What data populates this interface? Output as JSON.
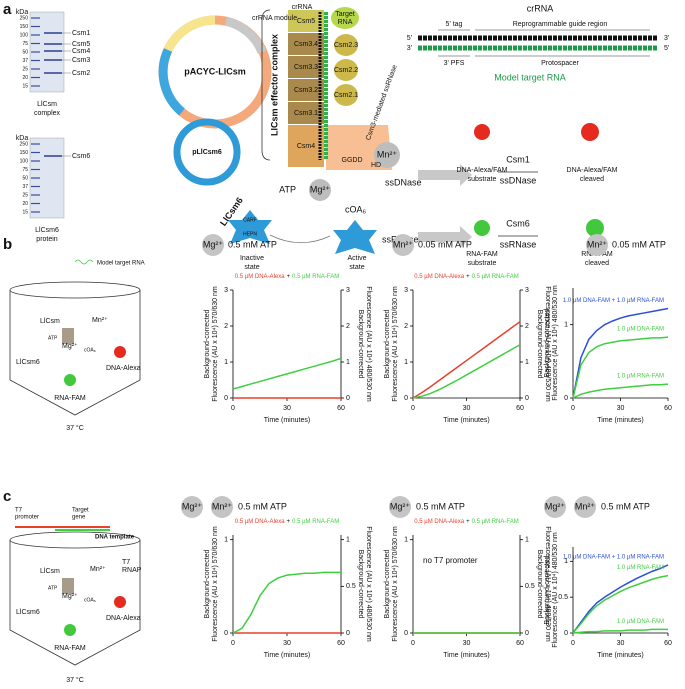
{
  "panels": {
    "a": {
      "label": "a",
      "gel_unit": "kDa",
      "gel_markers": [
        "250",
        "150",
        "100",
        "75",
        "50",
        "37",
        "25",
        "20",
        "15"
      ],
      "gel1_bands": [
        "Csm1",
        "Csm5",
        "Csm4",
        "Csm3",
        "Csm2"
      ],
      "gel1_caption": [
        "LlCsm",
        "complex"
      ],
      "gel2_bands": [
        "Csm6"
      ],
      "gel2_caption": [
        "LlCsm6",
        "protein"
      ],
      "plasmid1": "pACYC-LlCsm",
      "plasmid1_module": "crRNA module",
      "plasmid2": "pLlCsm6",
      "complex_title": "LlCsm effector complex",
      "complex_subunits": [
        "Csm5",
        "Csm3.4",
        "Csm3.3",
        "Csm3.2",
        "Csm3.1",
        "Csm4"
      ],
      "complex_small": [
        "Csm2.3",
        "Csm2.2",
        "Csm2.1"
      ],
      "complex_crrna": "crRNA",
      "target_rna": [
        "Target",
        "RNA"
      ],
      "hd": "HD",
      "ggdd": "GGDD",
      "csm3_note": "Csm3-mediated ssRNase",
      "crrna_title": "crRNA",
      "tag": "5' tag",
      "guide": "Reprogrammable guide region",
      "pfs": "3' PFS",
      "protospacer": "Protospacer",
      "model": "Model target RNA",
      "end5": "5'",
      "end3": "3'",
      "mn": "Mn²⁺",
      "mg": "Mg²⁺",
      "atp": "ATP",
      "coa": "cOA₆",
      "ssdnase": "ssDNase",
      "csm6_title": "LlCsm6",
      "carf": "CARF",
      "hepn": "HEPN",
      "inactive": [
        "Inactive",
        "state"
      ],
      "active": [
        "Active",
        "state"
      ],
      "ssrnase": "ssRNase",
      "csm1": "Csm1",
      "csm1_act": "ssDNase",
      "dna_sub": [
        "DNA-Alexa/FAM",
        "substrate"
      ],
      "dna_cleaved": [
        "DNA-Alexa/FAM",
        "cleaved"
      ],
      "csm6": "Csm6",
      "csm6_act": "ssRNase",
      "rna_sub": [
        "RNA-FAM",
        "substrate"
      ],
      "rna_cleaved": [
        "RNA-FAM",
        "cleaved"
      ]
    },
    "b": {
      "label": "b",
      "model": "Model target RNA",
      "llcsm": "LlCsm",
      "mn": "Mn²⁺",
      "mg": "Mg²⁺",
      "atp": "ATP",
      "coa": "cOA₆",
      "llcsm6": "LlCsm6",
      "dna": "DNA-Alexa",
      "rna": "RNA-FAM",
      "temp": "37 °C"
    },
    "c": {
      "label": "c",
      "t7": [
        "T7",
        "promoter"
      ],
      "gene": [
        "Target",
        "gene"
      ],
      "template": "DNA template",
      "llcsm": "LlCsm",
      "mn": "Mn²⁺",
      "rnap": [
        "T7",
        "RNAP"
      ],
      "mg": "Mg²⁺",
      "atp": "ATP",
      "coa": "cOA₆",
      "llcsm6": "LlCsm6",
      "dna": "DNA-Alexa",
      "rna": "RNA-FAM",
      "temp": "37 °C"
    }
  },
  "chart_data": [
    {
      "type": "line",
      "badges": [
        "Mg²⁺"
      ],
      "title": "0.5 mM ATP",
      "legend_separator": "+",
      "x": [
        0,
        5,
        10,
        15,
        20,
        25,
        30,
        35,
        40,
        45,
        50,
        55,
        60
      ],
      "xlim": [
        0,
        60
      ],
      "xticks": [
        0,
        30,
        60
      ],
      "xlabel": "Time (minutes)",
      "ylim": [
        0,
        3
      ],
      "yticks": [
        0,
        1,
        2,
        3
      ],
      "ylabel": [
        "Background-corrected",
        "Fluorescence (AU x 10⁴) 570/630 nm"
      ],
      "y2lim": [
        0,
        3
      ],
      "y2ticks": [
        0,
        1,
        2,
        3
      ],
      "y2label": [
        "Background-corrected",
        "Fluorescence (AU x 10⁴) 480/530 nm"
      ],
      "series": [
        {
          "name": "0.5 µM DNA-Alexa",
          "color": "#e8412c",
          "values": [
            0,
            0,
            0,
            0,
            0,
            0,
            0,
            0,
            0,
            0,
            0,
            0,
            0
          ]
        },
        {
          "name": "0.5 µM RNA-FAM",
          "color": "#3fcf3f",
          "axis": "y2",
          "values": [
            0.25,
            0.32,
            0.39,
            0.46,
            0.53,
            0.6,
            0.67,
            0.74,
            0.81,
            0.88,
            0.95,
            1.02,
            1.1
          ]
        }
      ]
    },
    {
      "type": "line",
      "badges": [
        "Mn²⁺"
      ],
      "title": "0.05 mM ATP",
      "legend_separator": "+",
      "x": [
        0,
        5,
        10,
        15,
        20,
        25,
        30,
        35,
        40,
        45,
        50,
        55,
        60
      ],
      "xlim": [
        0,
        60
      ],
      "xticks": [
        0,
        30,
        60
      ],
      "xlabel": "Time (minutes)",
      "ylim": [
        0,
        3
      ],
      "yticks": [
        0,
        1,
        2,
        3
      ],
      "ylabel": [
        "Background-corrected",
        "Fluorescence (AU x 10⁴) 570/630 nm"
      ],
      "y2lim": [
        0,
        3
      ],
      "y2ticks": [
        0,
        1,
        2,
        3
      ],
      "y2label": [
        "Background-corrected",
        "Fluorescence (AU x 10⁴) 480/530 nm"
      ],
      "series": [
        {
          "name": "0.5 µM DNA-Alexa",
          "color": "#e8412c",
          "values": [
            0,
            0.15,
            0.32,
            0.5,
            0.68,
            0.86,
            1.04,
            1.22,
            1.4,
            1.58,
            1.76,
            1.94,
            2.12
          ]
        },
        {
          "name": "0.5 µM RNA-FAM",
          "color": "#3fcf3f",
          "axis": "y2",
          "values": [
            0,
            0.05,
            0.13,
            0.24,
            0.37,
            0.5,
            0.64,
            0.78,
            0.92,
            1.06,
            1.2,
            1.34,
            1.48
          ]
        }
      ]
    },
    {
      "type": "line",
      "badges": [
        "Mn²⁺"
      ],
      "title": "0.05 mM ATP",
      "x": [
        0,
        5,
        10,
        15,
        20,
        25,
        30,
        35,
        40,
        45,
        50,
        55,
        60
      ],
      "xlim": [
        0,
        60
      ],
      "xticks": [
        0,
        30,
        60
      ],
      "xlabel": "Time (minutes)",
      "ylim": [
        0,
        1.5
      ],
      "yticks": [
        0,
        1
      ],
      "ylabel": [
        "Background-corrected",
        "Fluorescence (AU x 10⁴) 480/530 nm"
      ],
      "series": [
        {
          "name": "1.0 µM DNA-FAM + 1.0 µM RNA-FAM",
          "color": "#2b4fd8",
          "values": [
            0,
            0.55,
            0.8,
            0.92,
            1.0,
            1.05,
            1.09,
            1.12,
            1.14,
            1.16,
            1.18,
            1.2,
            1.22
          ]
        },
        {
          "name": "1.0 µM DNA-FAM",
          "color": "#3fcf3f",
          "values": [
            0,
            0.45,
            0.62,
            0.7,
            0.74,
            0.76,
            0.78,
            0.79,
            0.8,
            0.81,
            0.82,
            0.82,
            0.83
          ]
        },
        {
          "name": "1.0 µM RNA-FAM",
          "color": "#3fcf3f",
          "values": [
            0,
            0.05,
            0.08,
            0.1,
            0.12,
            0.13,
            0.14,
            0.15,
            0.16,
            0.17,
            0.18,
            0.18,
            0.19
          ]
        }
      ]
    },
    {
      "type": "line",
      "badges": [
        "Mg²⁺",
        "Mn²⁺"
      ],
      "title": "0.5 mM ATP",
      "legend_separator": "+",
      "x": [
        0,
        5,
        10,
        15,
        20,
        25,
        30,
        35,
        40,
        45,
        50,
        55,
        60
      ],
      "xlim": [
        0,
        60
      ],
      "xticks": [
        0,
        30,
        60
      ],
      "xlabel": "Time (minutes)",
      "ylim": [
        0,
        1.05
      ],
      "yticks": [
        0,
        1
      ],
      "ylabel": [
        "Background-corrected",
        "Fluorescence (AU x 10⁴) 570/630 nm"
      ],
      "y2lim": [
        0,
        1.05
      ],
      "y2ticks": [
        0,
        0.5,
        1
      ],
      "y2label": [
        "Background-corrected",
        "Fluorescence (AU x 10⁴) 480/530 nm"
      ],
      "series": [
        {
          "name": "0.5 µM DNA-Alexa",
          "color": "#e8412c",
          "values": [
            0,
            0,
            0,
            0,
            0,
            0,
            0,
            0,
            0,
            0,
            0,
            0,
            0
          ]
        },
        {
          "name": "0.5 µM RNA-FAM",
          "color": "#3fcf3f",
          "axis": "y2",
          "values": [
            0,
            0.05,
            0.2,
            0.4,
            0.53,
            0.59,
            0.62,
            0.63,
            0.64,
            0.64,
            0.65,
            0.65,
            0.65
          ]
        }
      ]
    },
    {
      "type": "line",
      "badges": [
        "Mg²⁺"
      ],
      "title": "0.5 mM ATP",
      "legend_separator": "+",
      "annotation": "no T7 promoter",
      "x": [
        0,
        5,
        10,
        15,
        20,
        25,
        30,
        35,
        40,
        45,
        50,
        55,
        60
      ],
      "xlim": [
        0,
        60
      ],
      "xticks": [
        0,
        30,
        60
      ],
      "xlabel": "Time (minutes)",
      "ylim": [
        0,
        1.05
      ],
      "yticks": [
        0,
        1
      ],
      "ylabel": [
        "Background-corrected",
        "Fluorescence (AU x 10⁴) 570/630 nm"
      ],
      "y2lim": [
        0,
        1.05
      ],
      "y2ticks": [
        0,
        0.5,
        1
      ],
      "y2label": [
        "Background-corrected",
        "Fluorescence (AU x 10⁴) 480/530 nm"
      ],
      "series": [
        {
          "name": "0.5 µM DNA-Alexa",
          "color": "#e8412c",
          "values": [
            0,
            0,
            0,
            0,
            0,
            0,
            0,
            0,
            0,
            0,
            0,
            0,
            0
          ]
        },
        {
          "name": "0.5 µM RNA-FAM",
          "color": "#3fcf3f",
          "axis": "y2",
          "values": [
            0,
            0,
            0,
            0,
            0,
            0,
            0,
            0,
            0,
            0,
            0,
            0,
            0
          ]
        }
      ]
    },
    {
      "type": "line",
      "badges": [
        "Mg²⁺",
        "Mn²⁺"
      ],
      "title": "0.5 mM ATP",
      "x": [
        0,
        5,
        10,
        15,
        20,
        25,
        30,
        35,
        40,
        45,
        50,
        55,
        60
      ],
      "xlim": [
        0,
        60
      ],
      "xticks": [
        0,
        30,
        60
      ],
      "xlabel": "Time (minutes)",
      "ylim": [
        0,
        1.2
      ],
      "yticks": [
        0,
        0.5,
        1
      ],
      "ylabel": [
        "Background-corrected",
        "Fluorescence (AU x 10⁴) 480/530 nm"
      ],
      "series": [
        {
          "name": "1.0 µM DNA-FAM + 1.0 µM RNA-FAM",
          "color": "#2b4fd8",
          "values": [
            0,
            0.15,
            0.3,
            0.42,
            0.5,
            0.57,
            0.64,
            0.7,
            0.76,
            0.81,
            0.86,
            0.9,
            0.95
          ]
        },
        {
          "name": "1.0 µM RNA-FAM",
          "color": "#3fcf3f",
          "values": [
            0,
            0.13,
            0.27,
            0.38,
            0.46,
            0.52,
            0.58,
            0.63,
            0.67,
            0.71,
            0.75,
            0.78,
            0.8
          ]
        },
        {
          "name": "1.0 µM DNA-FAM",
          "color": "#3fcf3f",
          "values": [
            0,
            0.01,
            0.02,
            0.02,
            0.03,
            0.03,
            0.03,
            0.04,
            0.04,
            0.04,
            0.05,
            0.05,
            0.05
          ]
        }
      ]
    }
  ]
}
